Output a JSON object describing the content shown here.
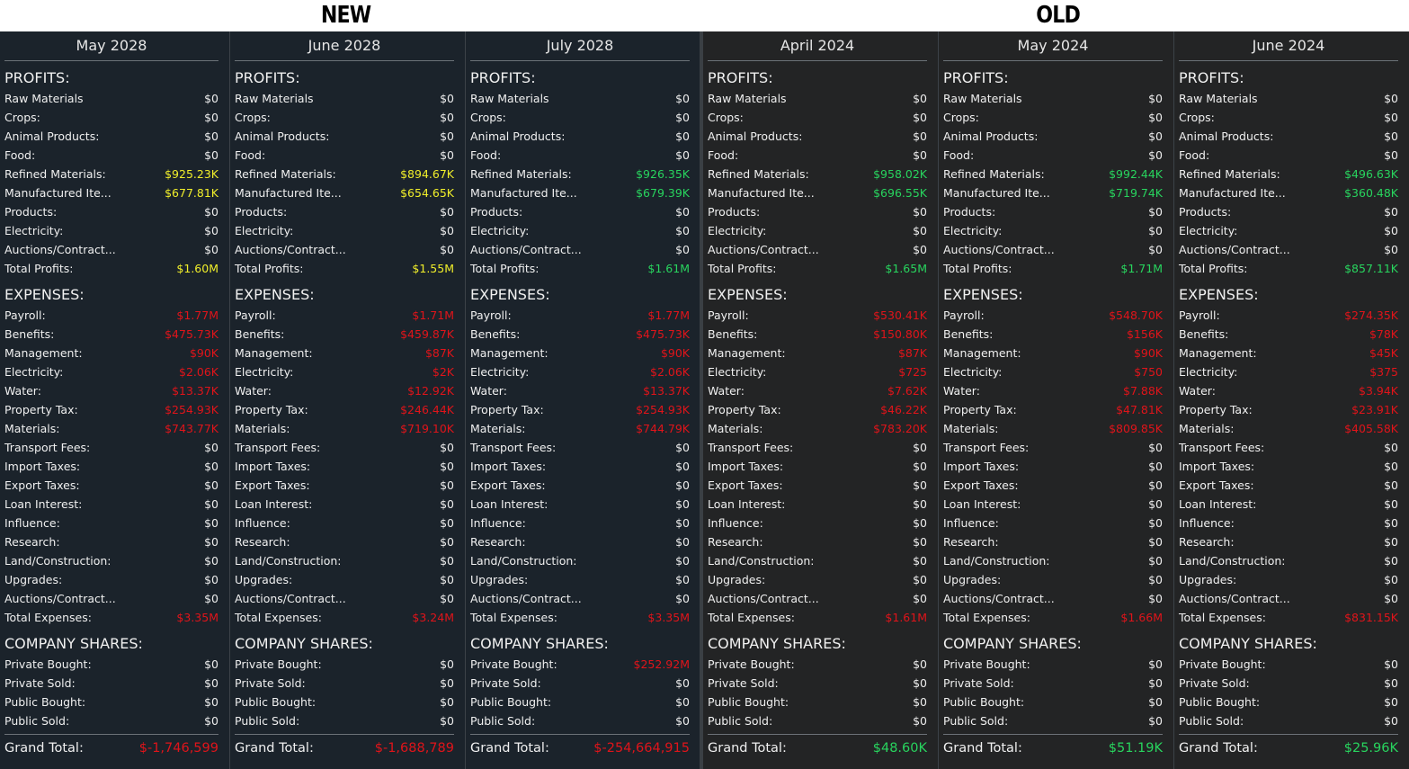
{
  "headers": {
    "new": "NEW",
    "old": "OLD"
  },
  "section_titles": {
    "profits": "PROFITS:",
    "expenses": "EXPENSES:",
    "shares": "COMPANY SHARES:"
  },
  "profit_labels": [
    "Raw Materials",
    "Crops:",
    "Animal Products:",
    "Food:",
    "Refined Materials:",
    "Manufactured Ite...",
    "Products:",
    "Electricity:",
    "Auctions/Contract...",
    "Total Profits:"
  ],
  "expense_labels": [
    "Payroll:",
    "Benefits:",
    "Management:",
    "Electricity:",
    "Water:",
    "Property Tax:",
    "Materials:",
    "Transport Fees:",
    "Import Taxes:",
    "Export Taxes:",
    "Loan Interest:",
    "Influence:",
    "Research:",
    "Land/Construction:",
    "Upgrades:",
    "Auctions/Contract...",
    "Total Expenses:"
  ],
  "share_labels": [
    "Private Bought:",
    "Private Sold:",
    "Public Bought:",
    "Public Sold:"
  ],
  "grand_label": "Grand Total:",
  "colors": {
    "white": "#ececec",
    "yellow": "#f0ee2a",
    "green": "#28d45e",
    "red": "#e0141a",
    "new_bg": "#1b232b",
    "old_bg": "#232425"
  },
  "columns": [
    {
      "group": "new",
      "title": "May 2028",
      "profits": [
        "$0",
        "$0",
        "$0",
        "$0",
        "$925.23K",
        "$677.81K",
        "$0",
        "$0",
        "$0",
        "$1.60M"
      ],
      "profit_colors": [
        "white",
        "white",
        "white",
        "white",
        "yellow",
        "yellow",
        "white",
        "white",
        "white",
        "yellow"
      ],
      "expenses": [
        "$1.77M",
        "$475.73K",
        "$90K",
        "$2.06K",
        "$13.37K",
        "$254.93K",
        "$743.77K",
        "$0",
        "$0",
        "$0",
        "$0",
        "$0",
        "$0",
        "$0",
        "$0",
        "$0",
        "$3.35M"
      ],
      "expense_colors": [
        "red",
        "red",
        "red",
        "red",
        "red",
        "red",
        "red",
        "white",
        "white",
        "white",
        "white",
        "white",
        "white",
        "white",
        "white",
        "white",
        "red"
      ],
      "shares": [
        "$0",
        "$0",
        "$0",
        "$0"
      ],
      "share_colors": [
        "white",
        "white",
        "white",
        "white"
      ],
      "grand": "$-1,746,599",
      "grand_color": "red"
    },
    {
      "group": "new",
      "title": "June 2028",
      "profits": [
        "$0",
        "$0",
        "$0",
        "$0",
        "$894.67K",
        "$654.65K",
        "$0",
        "$0",
        "$0",
        "$1.55M"
      ],
      "profit_colors": [
        "white",
        "white",
        "white",
        "white",
        "yellow",
        "yellow",
        "white",
        "white",
        "white",
        "yellow"
      ],
      "expenses": [
        "$1.71M",
        "$459.87K",
        "$87K",
        "$2K",
        "$12.92K",
        "$246.44K",
        "$719.10K",
        "$0",
        "$0",
        "$0",
        "$0",
        "$0",
        "$0",
        "$0",
        "$0",
        "$0",
        "$3.24M"
      ],
      "expense_colors": [
        "red",
        "red",
        "red",
        "red",
        "red",
        "red",
        "red",
        "white",
        "white",
        "white",
        "white",
        "white",
        "white",
        "white",
        "white",
        "white",
        "red"
      ],
      "shares": [
        "$0",
        "$0",
        "$0",
        "$0"
      ],
      "share_colors": [
        "white",
        "white",
        "white",
        "white"
      ],
      "grand": "$-1,688,789",
      "grand_color": "red"
    },
    {
      "group": "new",
      "title": "July 2028",
      "profits": [
        "$0",
        "$0",
        "$0",
        "$0",
        "$926.35K",
        "$679.39K",
        "$0",
        "$0",
        "$0",
        "$1.61M"
      ],
      "profit_colors": [
        "white",
        "white",
        "white",
        "white",
        "green",
        "green",
        "white",
        "white",
        "white",
        "green"
      ],
      "expenses": [
        "$1.77M",
        "$475.73K",
        "$90K",
        "$2.06K",
        "$13.37K",
        "$254.93K",
        "$744.79K",
        "$0",
        "$0",
        "$0",
        "$0",
        "$0",
        "$0",
        "$0",
        "$0",
        "$0",
        "$3.35M"
      ],
      "expense_colors": [
        "red",
        "red",
        "red",
        "red",
        "red",
        "red",
        "red",
        "white",
        "white",
        "white",
        "white",
        "white",
        "white",
        "white",
        "white",
        "white",
        "red"
      ],
      "shares": [
        "$252.92M",
        "$0",
        "$0",
        "$0"
      ],
      "share_colors": [
        "red",
        "white",
        "white",
        "white"
      ],
      "grand": "$-254,664,915",
      "grand_color": "red"
    },
    {
      "group": "old",
      "title": "April 2024",
      "profits": [
        "$0",
        "$0",
        "$0",
        "$0",
        "$958.02K",
        "$696.55K",
        "$0",
        "$0",
        "$0",
        "$1.65M"
      ],
      "profit_colors": [
        "white",
        "white",
        "white",
        "white",
        "green",
        "green",
        "white",
        "white",
        "white",
        "green"
      ],
      "expenses": [
        "$530.41K",
        "$150.80K",
        "$87K",
        "$725",
        "$7.62K",
        "$46.22K",
        "$783.20K",
        "$0",
        "$0",
        "$0",
        "$0",
        "$0",
        "$0",
        "$0",
        "$0",
        "$0",
        "$1.61M"
      ],
      "expense_colors": [
        "red",
        "red",
        "red",
        "red",
        "red",
        "red",
        "red",
        "white",
        "white",
        "white",
        "white",
        "white",
        "white",
        "white",
        "white",
        "white",
        "red"
      ],
      "shares": [
        "$0",
        "$0",
        "$0",
        "$0"
      ],
      "share_colors": [
        "white",
        "white",
        "white",
        "white"
      ],
      "grand": "$48.60K",
      "grand_color": "green"
    },
    {
      "group": "old",
      "title": "May 2024",
      "profits": [
        "$0",
        "$0",
        "$0",
        "$0",
        "$992.44K",
        "$719.74K",
        "$0",
        "$0",
        "$0",
        "$1.71M"
      ],
      "profit_colors": [
        "white",
        "white",
        "white",
        "white",
        "green",
        "green",
        "white",
        "white",
        "white",
        "green"
      ],
      "expenses": [
        "$548.70K",
        "$156K",
        "$90K",
        "$750",
        "$7.88K",
        "$47.81K",
        "$809.85K",
        "$0",
        "$0",
        "$0",
        "$0",
        "$0",
        "$0",
        "$0",
        "$0",
        "$0",
        "$1.66M"
      ],
      "expense_colors": [
        "red",
        "red",
        "red",
        "red",
        "red",
        "red",
        "red",
        "white",
        "white",
        "white",
        "white",
        "white",
        "white",
        "white",
        "white",
        "white",
        "red"
      ],
      "shares": [
        "$0",
        "$0",
        "$0",
        "$0"
      ],
      "share_colors": [
        "white",
        "white",
        "white",
        "white"
      ],
      "grand": "$51.19K",
      "grand_color": "green"
    },
    {
      "group": "old",
      "title": "June 2024",
      "profits": [
        "$0",
        "$0",
        "$0",
        "$0",
        "$496.63K",
        "$360.48K",
        "$0",
        "$0",
        "$0",
        "$857.11K"
      ],
      "profit_colors": [
        "white",
        "white",
        "white",
        "white",
        "green",
        "green",
        "white",
        "white",
        "white",
        "green"
      ],
      "expenses": [
        "$274.35K",
        "$78K",
        "$45K",
        "$375",
        "$3.94K",
        "$23.91K",
        "$405.58K",
        "$0",
        "$0",
        "$0",
        "$0",
        "$0",
        "$0",
        "$0",
        "$0",
        "$0",
        "$831.15K"
      ],
      "expense_colors": [
        "red",
        "red",
        "red",
        "red",
        "red",
        "red",
        "red",
        "white",
        "white",
        "white",
        "white",
        "white",
        "white",
        "white",
        "white",
        "white",
        "red"
      ],
      "shares": [
        "$0",
        "$0",
        "$0",
        "$0"
      ],
      "share_colors": [
        "white",
        "white",
        "white",
        "white"
      ],
      "grand": "$25.96K",
      "grand_color": "green"
    }
  ]
}
